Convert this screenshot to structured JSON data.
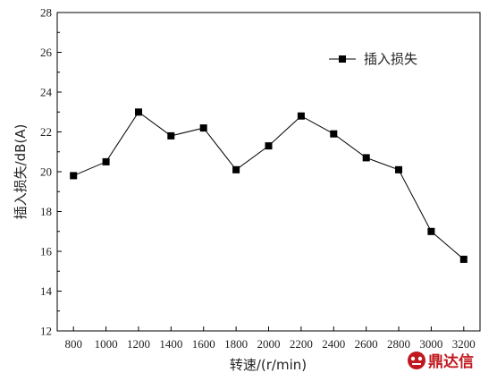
{
  "chart_data": {
    "type": "line",
    "title": "",
    "xlabel": "转速/(r/min)",
    "ylabel": "插入损失/dB(A)",
    "x": [
      800,
      1000,
      1200,
      1400,
      1600,
      1800,
      2000,
      2200,
      2400,
      2600,
      2800,
      3000,
      3200
    ],
    "xlim": [
      700,
      3300
    ],
    "ylim": [
      12,
      28
    ],
    "yticks": [
      12,
      14,
      16,
      18,
      20,
      22,
      24,
      26,
      28
    ],
    "grid": false,
    "legend_position": "top-right",
    "series": [
      {
        "name": "插入损失",
        "color": "#000000",
        "marker": "square",
        "values": [
          19.8,
          20.5,
          23.0,
          21.8,
          22.2,
          20.1,
          21.3,
          22.8,
          21.9,
          20.7,
          20.1,
          17.0,
          15.6
        ]
      }
    ]
  },
  "watermark": {
    "text": "鼎达信",
    "color": "#c0181e"
  }
}
